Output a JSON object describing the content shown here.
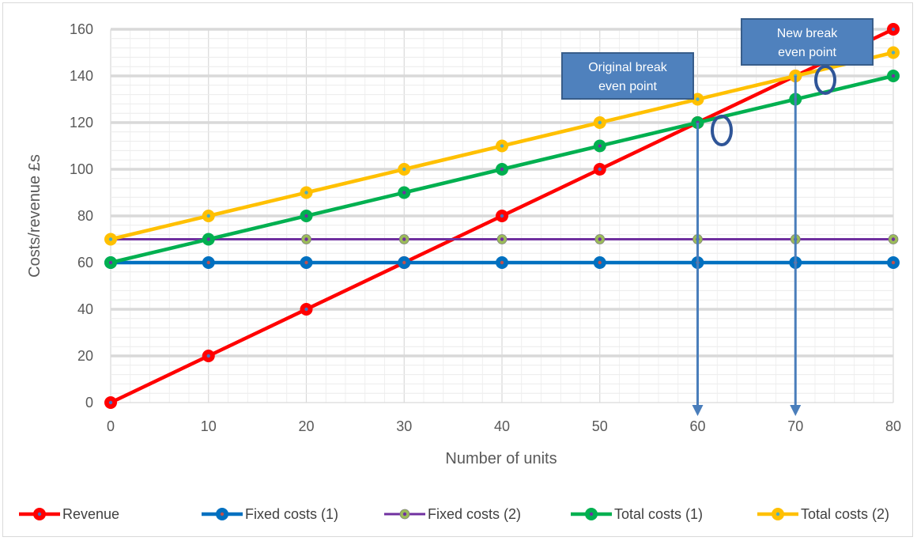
{
  "chart_data": {
    "type": "line",
    "xlabel": "Number of units",
    "ylabel": "Costs/revenue £s",
    "xlim": [
      0,
      80
    ],
    "ylim": [
      0,
      160
    ],
    "x_ticks": [
      "0",
      "10",
      "20",
      "30",
      "40",
      "50",
      "60",
      "70",
      "80"
    ],
    "y_ticks": [
      "0",
      "20",
      "40",
      "60",
      "80",
      "100",
      "120",
      "140",
      "160"
    ],
    "x": [
      0,
      10,
      20,
      30,
      40,
      50,
      60,
      70,
      80
    ],
    "grid": "on",
    "legend_position": "bottom",
    "series": [
      {
        "name": "Revenue",
        "color": "#ff0000",
        "marker_color": "#ff0000",
        "marker_center": "#4472c4",
        "values": [
          0,
          20,
          40,
          60,
          80,
          100,
          120,
          140,
          160
        ]
      },
      {
        "name": "Fixed costs (1)",
        "color": "#0070c0",
        "marker_color": "#0070c0",
        "marker_center": "#c0504d",
        "values": [
          60,
          60,
          60,
          60,
          60,
          60,
          60,
          60,
          60
        ]
      },
      {
        "name": "Fixed costs (2)",
        "color": "#7030a0",
        "marker_color": "#9bbb59",
        "marker_center": "#7030a0",
        "values": [
          70,
          70,
          70,
          70,
          70,
          70,
          70,
          70,
          70
        ]
      },
      {
        "name": "Total costs (1)",
        "color": "#00b050",
        "marker_color": "#00b050",
        "marker_center": "#7030a0",
        "values": [
          60,
          70,
          80,
          90,
          100,
          110,
          120,
          130,
          140
        ]
      },
      {
        "name": "Total costs (2)",
        "color": "#ffc000",
        "marker_color": "#ffc000",
        "marker_center": "#4bacc6",
        "values": [
          70,
          80,
          90,
          100,
          110,
          120,
          130,
          140,
          150
        ]
      }
    ],
    "annotations": [
      {
        "label_lines": [
          "Original break",
          "even point"
        ],
        "x": 60,
        "y": 120,
        "arrow_to_x": 60
      },
      {
        "label_lines": [
          "New break",
          "even point"
        ],
        "x": 70,
        "y": 140,
        "arrow_to_x": 70
      }
    ]
  }
}
